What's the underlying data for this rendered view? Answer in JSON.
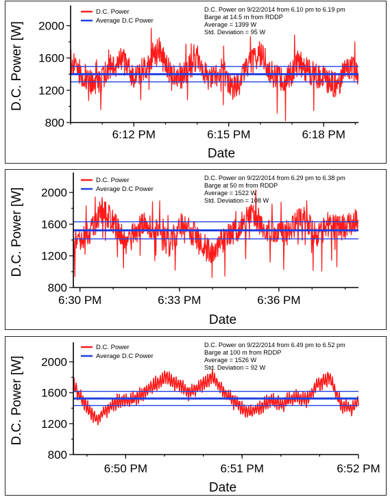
{
  "colors": {
    "dc_power": "#ff1a1a",
    "average": "#1f3fe0"
  },
  "chart_data": [
    {
      "type": "line",
      "title": "",
      "xlabel": "Date",
      "ylabel": "D.C. Power [W]",
      "ylim": [
        800,
        2200
      ],
      "yticks": [
        800,
        1200,
        1600,
        2000
      ],
      "x_range": [
        "6:10 PM",
        "6:19 PM"
      ],
      "x_tick_labels": [
        "6:12 PM",
        "6:15 PM",
        "6:18 PM"
      ],
      "x_tick_minutes": [
        12,
        15,
        18
      ],
      "x_span_minutes": [
        10,
        19.1
      ],
      "annotation": [
        "D.C. Power on 9/22/2014 from 6.10 pm to 6.19 pm",
        "Barge at 14.5 m from RDDP",
        "Average = 1399 W",
        "Std. Deviation = 95 W"
      ],
      "legend": [
        "D.C. Power",
        "Average D.C Power"
      ],
      "average": 1399,
      "band": [
        1304,
        1494
      ],
      "series": [
        {
          "name": "D.C. Power",
          "style": "noisy",
          "x_minutes": [
            10.0,
            10.4,
            10.8,
            11.2,
            11.6,
            12.0,
            12.4,
            12.8,
            13.2,
            13.6,
            14.0,
            14.4,
            14.8,
            15.2,
            15.6,
            16.0,
            16.4,
            16.8,
            17.2,
            17.6,
            18.0,
            18.4,
            18.8,
            19.1
          ],
          "values": [
            1550,
            1400,
            1250,
            1450,
            1600,
            1350,
            1500,
            1700,
            1350,
            1400,
            1600,
            1300,
            1450,
            1200,
            1500,
            1650,
            1400,
            1300,
            1550,
            1400,
            1350,
            1250,
            1500,
            1400
          ]
        },
        {
          "name": "Average D.C Power",
          "values": [
            1399
          ]
        }
      ]
    },
    {
      "type": "line",
      "title": "",
      "xlabel": "Date",
      "ylabel": "D.C. Power [W]",
      "ylim": [
        800,
        2200
      ],
      "yticks": [
        800,
        1200,
        1600,
        2000
      ],
      "x_range": [
        "6:29 PM",
        "6:38 PM"
      ],
      "x_tick_labels": [
        "6:30 PM",
        "6:33 PM",
        "6:36 PM"
      ],
      "x_tick_minutes": [
        30,
        33,
        36
      ],
      "x_span_minutes": [
        29.8,
        38.4
      ],
      "annotation": [
        "D.C. Power on 9/22/2014 from 6.29 pm to 6.38 pm",
        "Barge at 50 m from RDDP",
        "Average = 1522 W",
        "Std. Deviation = 108 W"
      ],
      "legend": [
        "D.C. Power",
        "Average D.C Power"
      ],
      "average": 1522,
      "band": [
        1414,
        1630
      ],
      "series": [
        {
          "name": "D.C. Power",
          "style": "noisy",
          "x_minutes": [
            29.9,
            30.3,
            30.7,
            31.1,
            31.5,
            31.9,
            32.3,
            32.7,
            33.1,
            33.5,
            33.9,
            34.3,
            34.7,
            35.1,
            35.5,
            35.9,
            36.3,
            36.7,
            37.1,
            37.5,
            37.9,
            38.3
          ],
          "values": [
            1350,
            1500,
            1800,
            1550,
            1400,
            1650,
            1500,
            1350,
            1600,
            1450,
            1250,
            1400,
            1500,
            1750,
            1600,
            1450,
            1500,
            1700,
            1450,
            1600,
            1550,
            1650
          ]
        },
        {
          "name": "Average D.C Power",
          "values": [
            1522
          ]
        }
      ]
    },
    {
      "type": "line",
      "title": "",
      "xlabel": "Date",
      "ylabel": "D.C. Power [W]",
      "ylim": [
        800,
        2200
      ],
      "yticks": [
        800,
        1200,
        1600,
        2000
      ],
      "x_range": [
        "6:49 PM",
        "6:52 PM"
      ],
      "x_tick_labels": [
        "6:50 PM",
        "6:51 PM",
        "6:52 PM"
      ],
      "x_tick_minutes": [
        50,
        51,
        52
      ],
      "x_span_minutes": [
        49.55,
        52.0
      ],
      "annotation": [
        "D.C. Power on 9/22/2014 from 6.49 pm to 6.52 pm",
        "Barge at 100 m from RDDP",
        "Average = 1526 W",
        "Std. Deviation = 92 W"
      ],
      "legend": [
        "D.C. Power",
        "Average D.C Power"
      ],
      "average": 1526,
      "band": [
        1434,
        1618
      ],
      "series": [
        {
          "name": "D.C. Power",
          "style": "oscillating",
          "x_minutes": [
            49.55,
            49.65,
            49.75,
            49.85,
            49.95,
            50.05,
            50.15,
            50.25,
            50.35,
            50.45,
            50.55,
            50.65,
            50.75,
            50.85,
            50.95,
            51.05,
            51.15,
            51.25,
            51.35,
            51.45,
            51.55,
            51.65,
            51.75,
            51.85,
            51.95,
            52.0
          ],
          "values": [
            1700,
            1450,
            1250,
            1400,
            1500,
            1500,
            1600,
            1700,
            1800,
            1700,
            1600,
            1700,
            1800,
            1600,
            1450,
            1350,
            1400,
            1500,
            1450,
            1550,
            1500,
            1700,
            1800,
            1450,
            1400,
            1500
          ]
        },
        {
          "name": "Average D.C Power",
          "values": [
            1526
          ]
        }
      ]
    }
  ]
}
